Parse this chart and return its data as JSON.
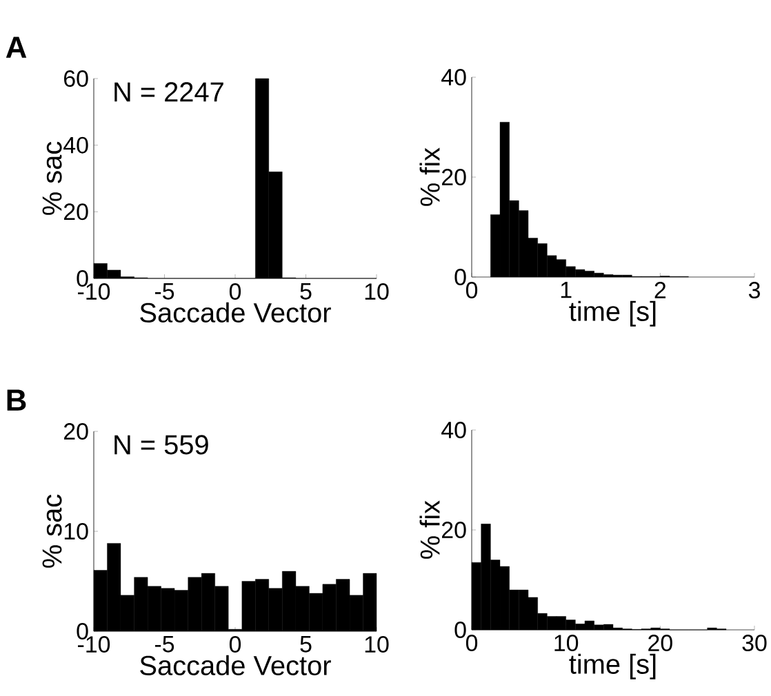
{
  "chart_data": [
    {
      "type": "histogram",
      "title": "A",
      "xlabel": "Saccade Vector",
      "ylabel": "% sac",
      "annotations": [
        "N = 2247"
      ],
      "color": "#000000",
      "bins": [
        -10,
        -9.05,
        -8.1,
        -7.14,
        -6.19,
        -5.24,
        -4.29,
        -3.33,
        -2.38,
        -1.43,
        -0.48,
        0.48,
        1.43,
        2.38,
        3.33,
        4.29,
        5.24,
        6.19,
        7.14,
        8.1,
        9.05,
        10
      ],
      "values": [
        4.5,
        2.5,
        0.5,
        0.2,
        0,
        0,
        0,
        0,
        0,
        0,
        0,
        0,
        60,
        32,
        0.2,
        0,
        0,
        0,
        0,
        0,
        0
      ],
      "xlim": [
        -10,
        10
      ],
      "ylim": [
        0,
        60
      ],
      "xticks": [
        -10,
        -5,
        0,
        5,
        10
      ],
      "yticks": [
        0,
        20,
        40,
        60
      ]
    },
    {
      "type": "histogram",
      "xlabel": "time [s]",
      "ylabel": "% fix",
      "color": "#000000",
      "bins": [
        0.2,
        0.3,
        0.4,
        0.5,
        0.6,
        0.7,
        0.8,
        0.9,
        1.0,
        1.1,
        1.2,
        1.3,
        1.4,
        1.5,
        1.6,
        1.7,
        1.8,
        1.9,
        2.0,
        2.1,
        2.2,
        2.3
      ],
      "values": [
        12.5,
        31,
        15.3,
        13.3,
        7.8,
        6.7,
        4.3,
        3.5,
        2.1,
        1.5,
        1.2,
        0.8,
        0.5,
        0.4,
        0.4,
        0.1,
        0.1,
        0.1,
        0.2,
        0.1,
        0.1
      ],
      "xlim": [
        0,
        3
      ],
      "ylim": [
        0,
        40
      ],
      "xticks": [
        0,
        1,
        2,
        3
      ],
      "yticks": [
        0,
        20,
        40
      ]
    },
    {
      "type": "histogram",
      "title": "B",
      "xlabel": "Saccade Vector",
      "ylabel": "% sac",
      "annotations": [
        "N = 559"
      ],
      "color": "#000000",
      "bins": [
        -10,
        -9.05,
        -8.1,
        -7.14,
        -6.19,
        -5.24,
        -4.29,
        -3.33,
        -2.38,
        -1.43,
        -0.48,
        0.48,
        1.43,
        2.38,
        3.33,
        4.29,
        5.24,
        6.19,
        7.14,
        8.1,
        9.05,
        10
      ],
      "values": [
        6.1,
        8.8,
        3.6,
        5.4,
        4.5,
        4.3,
        4.1,
        5.4,
        5.8,
        4.5,
        0.2,
        5.0,
        5.2,
        4.3,
        6.0,
        4.5,
        3.8,
        4.7,
        5.2,
        3.6,
        5.8
      ],
      "xlim": [
        -10,
        10
      ],
      "ylim": [
        0,
        20
      ],
      "xticks": [
        -10,
        -5,
        0,
        5,
        10
      ],
      "yticks": [
        0,
        10,
        20
      ]
    },
    {
      "type": "histogram",
      "xlabel": "time [s]",
      "ylabel": "% fix",
      "color": "#000000",
      "bins": [
        0,
        1,
        2,
        3,
        4,
        5,
        6,
        7,
        8,
        9,
        10,
        11,
        12,
        13,
        14,
        15,
        16,
        17,
        18,
        19,
        20,
        21,
        22,
        23,
        24,
        25,
        26,
        27
      ],
      "values": [
        13.5,
        21.2,
        14,
        12.7,
        8,
        8,
        6.5,
        3.3,
        2.7,
        2.7,
        2,
        1.2,
        1.8,
        1,
        1.1,
        0.4,
        0.2,
        0.1,
        0.2,
        0.4,
        0.2,
        0,
        0,
        0,
        0,
        0.4,
        0.2
      ],
      "xlim": [
        0,
        30
      ],
      "ylim": [
        0,
        40
      ],
      "xticks": [
        0,
        10,
        20,
        30
      ],
      "yticks": [
        0,
        20,
        40
      ]
    }
  ]
}
